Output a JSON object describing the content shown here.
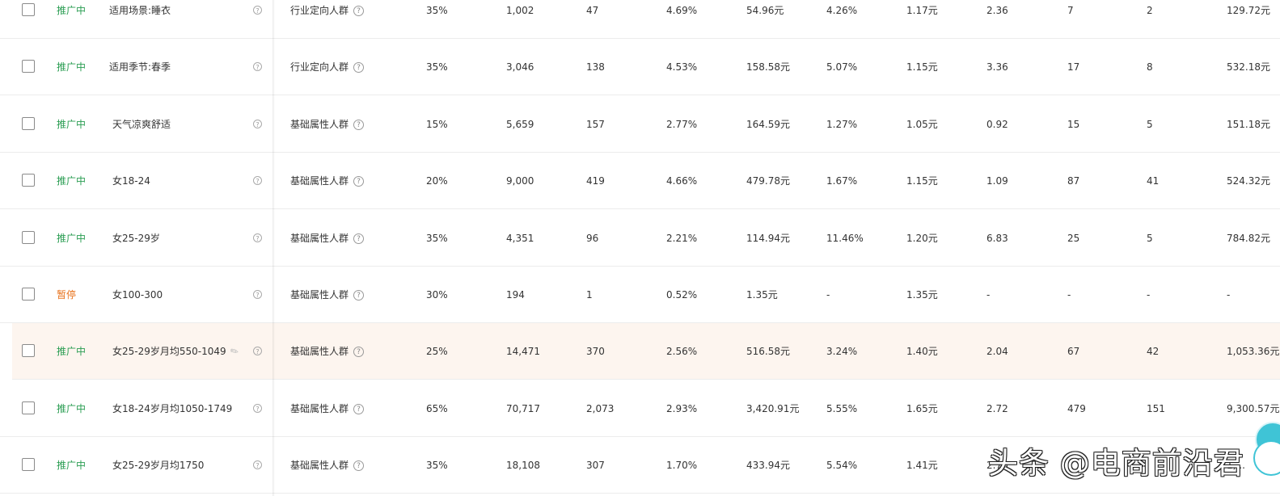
{
  "rows": [
    {
      "status": "推广中",
      "status_type": "on",
      "name": "适用场景:睡衣",
      "crowd_type": "行业定向人群",
      "premium": "35%",
      "impressions": "1,002",
      "clicks": "47",
      "ctr": "4.69%",
      "cost": "54.96元",
      "cvr": "4.26%",
      "cpc": "1.17元",
      "roi": "2.36",
      "favorites": "7",
      "carts": "2",
      "amount": "129.72元"
    },
    {
      "status": "推广中",
      "status_type": "on",
      "name": "适用季节:春季",
      "crowd_type": "行业定向人群",
      "premium": "35%",
      "impressions": "3,046",
      "clicks": "138",
      "ctr": "4.53%",
      "cost": "158.58元",
      "cvr": "5.07%",
      "cpc": "1.15元",
      "roi": "3.36",
      "favorites": "17",
      "carts": "8",
      "amount": "532.18元"
    },
    {
      "status": "推广中",
      "status_type": "on",
      "name": "天气凉爽舒适",
      "crowd_type": "基础属性人群",
      "premium": "15%",
      "impressions": "5,659",
      "clicks": "157",
      "ctr": "2.77%",
      "cost": "164.59元",
      "cvr": "1.27%",
      "cpc": "1.05元",
      "roi": "0.92",
      "favorites": "15",
      "carts": "5",
      "amount": "151.18元"
    },
    {
      "status": "推广中",
      "status_type": "on",
      "name": "女18-24",
      "crowd_type": "基础属性人群",
      "premium": "20%",
      "impressions": "9,000",
      "clicks": "419",
      "ctr": "4.66%",
      "cost": "479.78元",
      "cvr": "1.67%",
      "cpc": "1.15元",
      "roi": "1.09",
      "favorites": "87",
      "carts": "41",
      "amount": "524.32元"
    },
    {
      "status": "推广中",
      "status_type": "on",
      "name": "女25-29岁",
      "crowd_type": "基础属性人群",
      "premium": "35%",
      "impressions": "4,351",
      "clicks": "96",
      "ctr": "2.21%",
      "cost": "114.94元",
      "cvr": "11.46%",
      "cpc": "1.20元",
      "roi": "6.83",
      "favorites": "25",
      "carts": "5",
      "amount": "784.82元"
    },
    {
      "status": "暂停",
      "status_type": "off",
      "name": "女100-300",
      "crowd_type": "基础属性人群",
      "premium": "30%",
      "impressions": "194",
      "clicks": "1",
      "ctr": "0.52%",
      "cost": "1.35元",
      "cvr": "-",
      "cpc": "1.35元",
      "roi": "-",
      "favorites": "-",
      "carts": "-",
      "amount": "-"
    },
    {
      "status": "推广中",
      "status_type": "on",
      "name": "女25-29岁月均550-1049",
      "crowd_type": "基础属性人群",
      "premium": "25%",
      "impressions": "14,471",
      "clicks": "370",
      "ctr": "2.56%",
      "cost": "516.58元",
      "cvr": "3.24%",
      "cpc": "1.40元",
      "roi": "2.04",
      "favorites": "67",
      "carts": "42",
      "amount": "1,053.36元",
      "highlight": true,
      "editable": true
    },
    {
      "status": "推广中",
      "status_type": "on",
      "name": "女18-24岁月均1050-1749",
      "crowd_type": "基础属性人群",
      "premium": "65%",
      "impressions": "70,717",
      "clicks": "2,073",
      "ctr": "2.93%",
      "cost": "3,420.91元",
      "cvr": "5.55%",
      "cpc": "1.65元",
      "roi": "2.72",
      "favorites": "479",
      "carts": "151",
      "amount": "9,300.57元"
    },
    {
      "status": "推广中",
      "status_type": "on",
      "name": "女25-29岁月均1750",
      "crowd_type": "基础属性人群",
      "premium": "35%",
      "impressions": "18,108",
      "clicks": "307",
      "ctr": "1.70%",
      "cost": "433.94元",
      "cvr": "5.54%",
      "cpc": "1.41元",
      "roi": "2.76",
      "favorites": "",
      "carts": "",
      "amount": "1,..."
    }
  ],
  "icons": {
    "help": "?",
    "edit": "✎"
  },
  "watermark": "头条 @电商前沿君",
  "colors": {
    "status_on": "#2a9d52",
    "status_off": "#e8731d",
    "highlight_row": "#fdf5ef",
    "float_button": "#3fc4d6"
  }
}
